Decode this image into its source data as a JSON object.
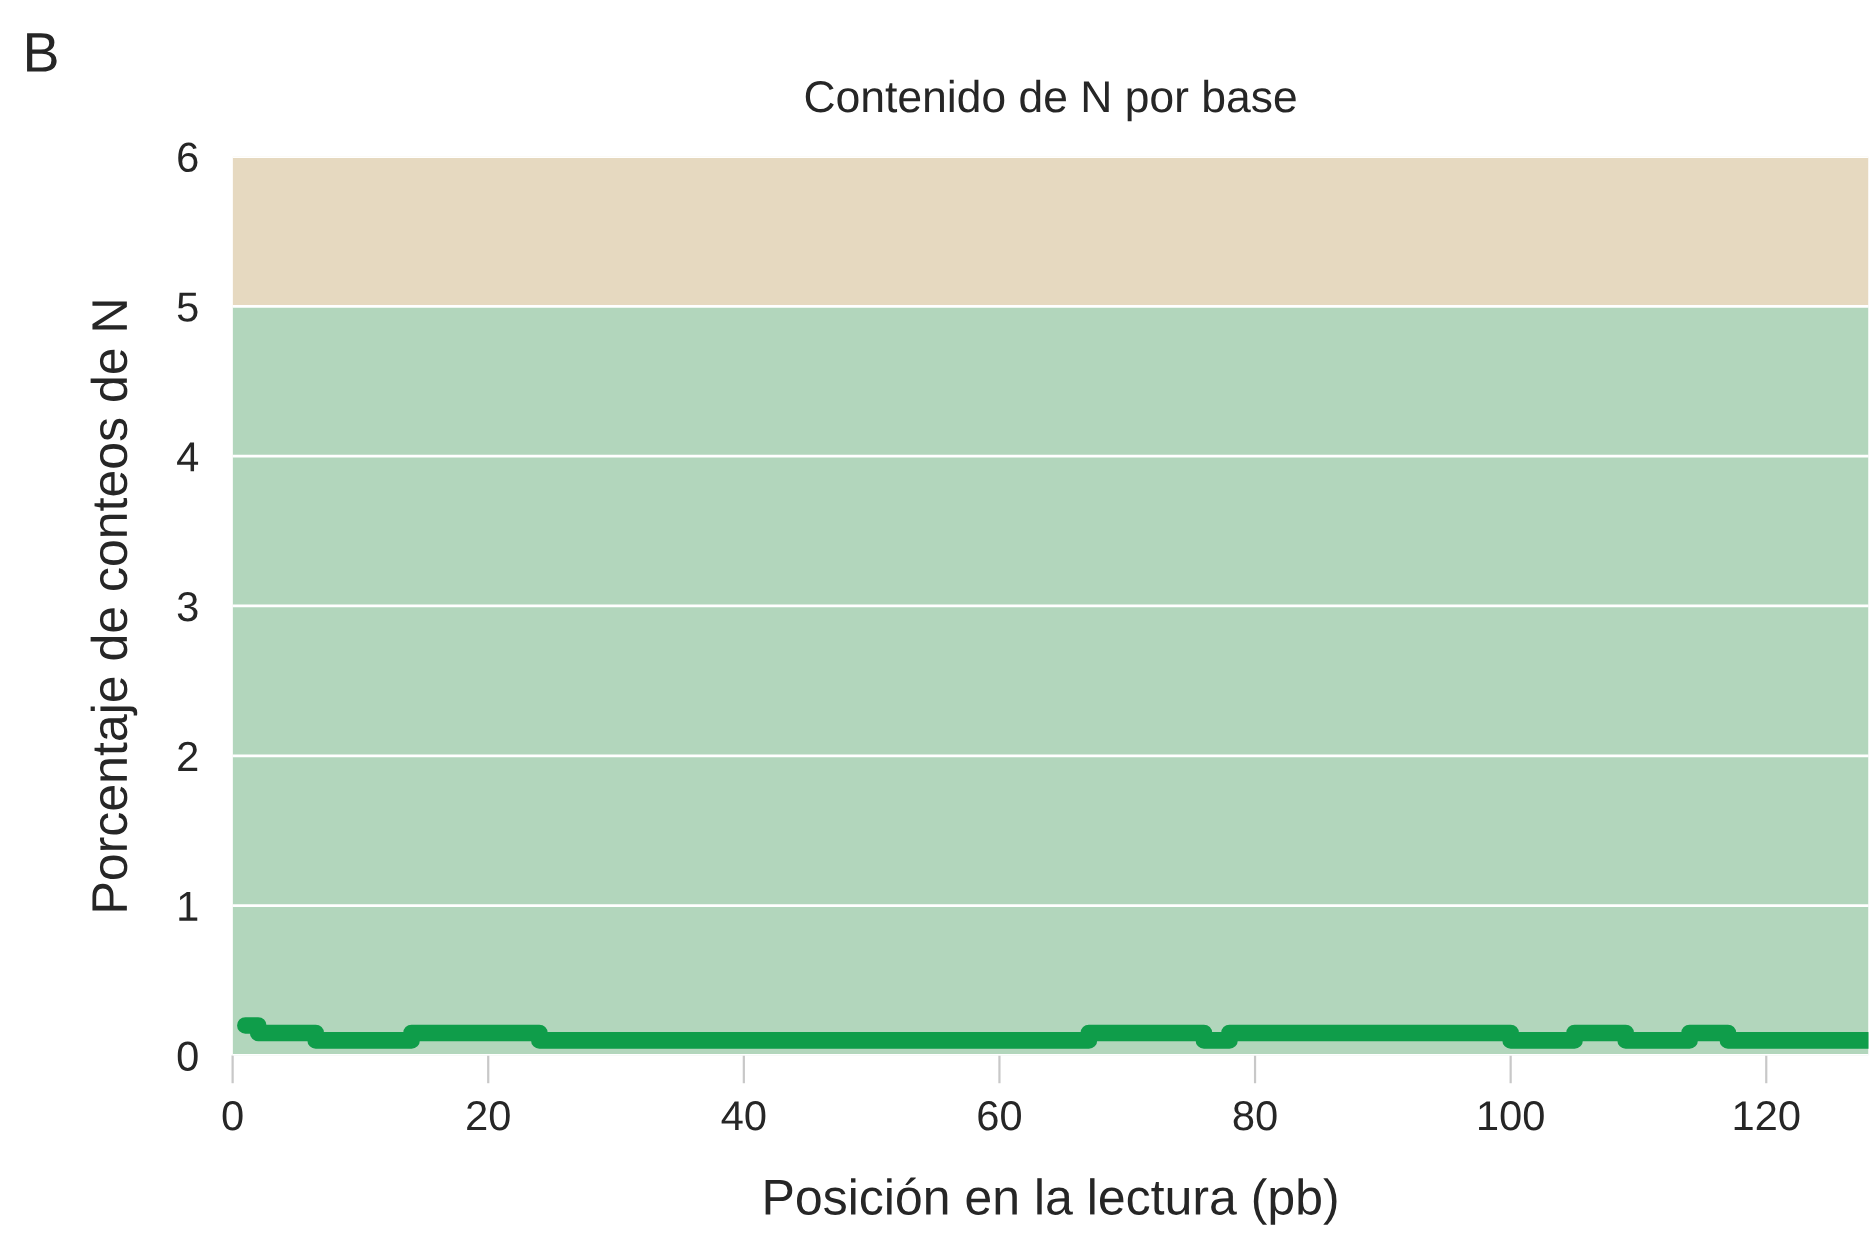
{
  "chart_data": {
    "type": "step",
    "title": "Contenido de N por base",
    "xlabel": "Posición en la lectura (pb)",
    "ylabel": "Porcentaje de conteos de N",
    "annotations": [
      "B"
    ],
    "x": [
      1,
      2,
      6.5,
      14,
      24,
      67,
      76,
      78,
      100,
      105,
      109,
      114,
      117,
      128
    ],
    "series": [
      {
        "color": "#0f9d4a",
        "values": [
          0.2,
          0.15,
          0.1,
          0.15,
          0.1,
          0.15,
          0.1,
          0.15,
          0.1,
          0.15,
          0.1,
          0.15,
          0.1,
          0.1
        ]
      }
    ],
    "bands": [
      {
        "axis": "y",
        "from": 0,
        "to": 5,
        "color": "#b2d6bc"
      },
      {
        "axis": "y",
        "from": 5,
        "to": 6,
        "color": "#e6d9c0"
      }
    ],
    "xlim": [
      0,
      128
    ],
    "xticks": [
      0,
      20,
      40,
      60,
      80,
      100,
      120
    ],
    "ylim": [
      0,
      6
    ],
    "yticks": [
      0,
      1,
      2,
      3,
      4,
      5,
      6
    ],
    "grid": "y",
    "legend": false
  }
}
